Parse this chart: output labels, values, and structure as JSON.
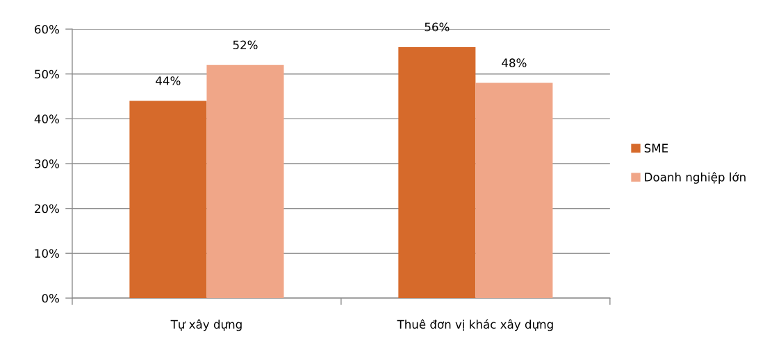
{
  "chart_data": {
    "type": "bar",
    "categories": [
      "Tự xây dựng",
      "Thuê đơn vị khác xây dựng"
    ],
    "series": [
      {
        "name": "SME",
        "color": "#d66a2b",
        "values": [
          44,
          56
        ],
        "value_labels": [
          "44%",
          "56%"
        ]
      },
      {
        "name": "Doanh nghiệp lớn",
        "color": "#f0a688",
        "values": [
          52,
          48
        ],
        "value_labels": [
          "52%",
          "48%"
        ]
      }
    ],
    "ylim": [
      0,
      60
    ],
    "yticks": [
      {
        "value": 0,
        "label": "0%"
      },
      {
        "value": 10,
        "label": "10%"
      },
      {
        "value": 20,
        "label": "20%"
      },
      {
        "value": 30,
        "label": "30%"
      },
      {
        "value": 40,
        "label": "40%"
      },
      {
        "value": 50,
        "label": "50%"
      },
      {
        "value": 60,
        "label": "60%"
      }
    ],
    "grid": "y",
    "legend": "right"
  }
}
